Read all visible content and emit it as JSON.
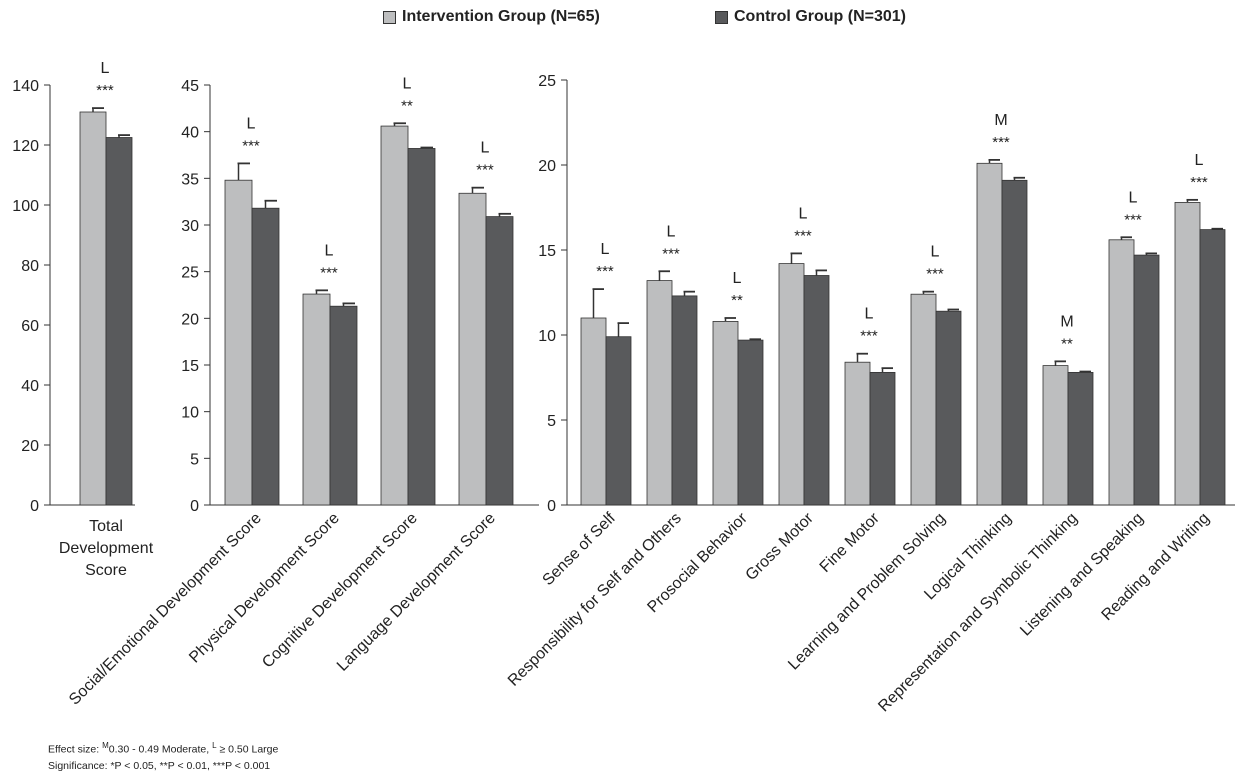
{
  "legend": [
    {
      "label": "Intervention Group (N=65)",
      "color": "#bdbebf"
    },
    {
      "label": "Control Group (N=301)",
      "color": "#595a5c"
    }
  ],
  "notes": {
    "effect_prefix": "Effect size: ",
    "m_sup": "M",
    "m_text": "0.30 - 0.49 Moderate, ",
    "l_sup": "L",
    "l_text": " ≥ 0.50 Large",
    "significance": "Significance: *P < 0.05, **P < 0.01, ***P < 0.001"
  },
  "chart_data": [
    {
      "type": "bar",
      "ylim": [
        0,
        140
      ],
      "yticks": [
        0,
        20,
        40,
        60,
        80,
        100,
        120,
        140
      ],
      "categories": [
        "Total Development Score"
      ],
      "category_lines": [
        [
          "Total",
          "Development",
          "Score"
        ]
      ],
      "label_style": "horizontal",
      "series": [
        {
          "name": "Intervention Group (N=65)",
          "values": [
            131
          ],
          "errors": [
            1.3
          ]
        },
        {
          "name": "Control Group (N=301)",
          "values": [
            122.5
          ],
          "errors": [
            0.8
          ]
        }
      ],
      "effect": [
        "L"
      ],
      "sig": [
        "***"
      ]
    },
    {
      "type": "bar",
      "ylim": [
        0,
        45
      ],
      "yticks": [
        0,
        5,
        10,
        15,
        20,
        25,
        30,
        35,
        40,
        45
      ],
      "categories": [
        "Social/Emotional Development Score",
        "Physical Development Score",
        "Cognitive Development Score",
        "Language Development Score"
      ],
      "label_style": "rotated",
      "series": [
        {
          "name": "Intervention Group (N=65)",
          "values": [
            34.8,
            22.6,
            40.6,
            33.4
          ],
          "errors": [
            1.8,
            0.4,
            0.3,
            0.6
          ]
        },
        {
          "name": "Control Group (N=301)",
          "values": [
            31.8,
            21.3,
            38.2,
            30.9
          ],
          "errors": [
            0.8,
            0.3,
            0.1,
            0.3
          ]
        }
      ],
      "effect": [
        "L",
        "L",
        "L",
        "L"
      ],
      "sig": [
        "***",
        "***",
        "**",
        "***"
      ]
    },
    {
      "type": "bar",
      "ylim": [
        0,
        25
      ],
      "yticks": [
        0,
        5,
        10,
        15,
        20,
        25
      ],
      "categories": [
        "Sense of Self",
        "Responsibility for Self and Others",
        "Prosocial Behavior",
        "Gross Motor",
        "Fine Motor",
        "Learning and Problem Solving",
        "Logical Thinking",
        "Representation and Symbolic Thinking",
        "Listening and Speaking",
        "Reading and Writing"
      ],
      "label_style": "rotated",
      "series": [
        {
          "name": "Intervention Group (N=65)",
          "values": [
            11.0,
            13.2,
            10.8,
            14.2,
            8.4,
            12.4,
            20.1,
            8.2,
            15.6,
            17.8
          ],
          "errors": [
            1.7,
            0.55,
            0.2,
            0.6,
            0.5,
            0.15,
            0.2,
            0.25,
            0.15,
            0.15
          ]
        },
        {
          "name": "Control Group (N=301)",
          "values": [
            9.9,
            12.3,
            9.7,
            13.5,
            7.8,
            11.4,
            19.1,
            7.8,
            14.7,
            16.2
          ],
          "errors": [
            0.8,
            0.25,
            0.05,
            0.3,
            0.25,
            0.1,
            0.15,
            0.05,
            0.1,
            0.05
          ]
        }
      ],
      "effect": [
        "L",
        "L",
        "L",
        "L",
        "L",
        "L",
        "M",
        "M",
        "L",
        "L"
      ],
      "sig": [
        "***",
        "***",
        "**",
        "***",
        "***",
        "***",
        "***",
        "**",
        "***",
        "***"
      ]
    }
  ]
}
